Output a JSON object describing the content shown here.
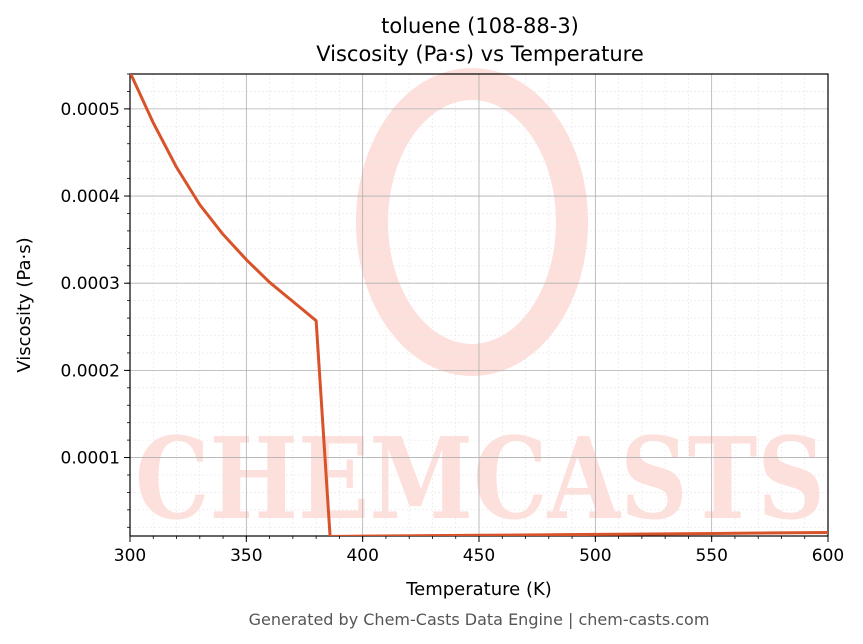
{
  "chart_data": {
    "type": "line",
    "title": "toluene (108-88-3)",
    "subtitle": "Viscosity (Pa·s) vs Temperature",
    "xlabel": "Temperature (K)",
    "ylabel": "Viscosity (Pa·s)",
    "xlim": [
      300,
      600
    ],
    "ylim": [
      1e-05,
      0.00054
    ],
    "x_ticks": [
      300,
      350,
      400,
      450,
      500,
      550,
      600
    ],
    "x_tick_labels": [
      "300",
      "350",
      "400",
      "450",
      "500",
      "550",
      "600"
    ],
    "y_ticks": [
      0.0001,
      0.0002,
      0.0003,
      0.0004,
      0.0005
    ],
    "y_tick_labels": [
      "0.0001",
      "0.0002",
      "0.0003",
      "0.0004",
      "0.0005"
    ],
    "grid": true,
    "legend": "none",
    "series": [
      {
        "color": "#d9532a",
        "x": [
          300,
          310,
          320,
          330,
          340,
          350,
          360,
          370,
          380,
          386,
          400,
          450,
          500,
          550,
          600
        ],
        "y": [
          0.000542,
          0.000484,
          0.000433,
          0.00039,
          0.000356,
          0.000327,
          0.000301,
          0.000279,
          0.000257,
          9.5e-06,
          9.9e-06,
          1.08e-05,
          1.18e-05,
          1.29e-05,
          1.4e-05
        ]
      }
    ]
  },
  "watermark": {
    "text": "CHEMCASTS",
    "color": "#fde0db"
  },
  "footer": "Generated by Chem-Casts Data Engine | chem-casts.com"
}
